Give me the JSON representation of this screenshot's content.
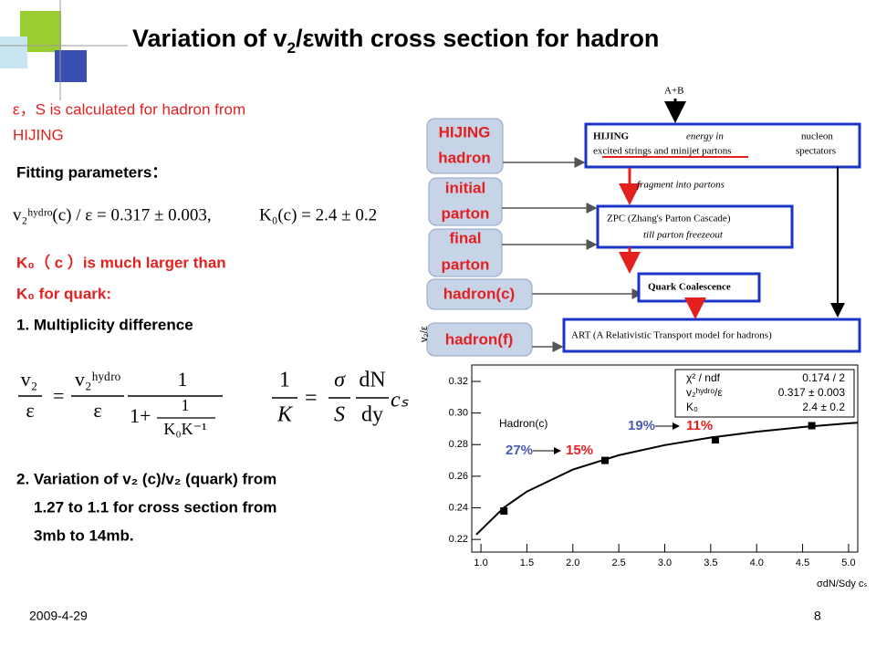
{
  "title": {
    "pre": "Variation of  v",
    "sub": "2",
    "post": "/εwith cross section for hadron"
  },
  "note": [
    "ε，S is calculated for hadron from",
    "HIJING"
  ],
  "fit_label": "Fitting parameters：",
  "fit_formula": [
    "v₂ʰʸᵈʳᵒ(c) / ε = 0.317 ± 0.003,",
    "K₀(c) = 2.4 ± 0.2"
  ],
  "k_lines": [
    "K₀（ c ）is much larger than",
    "K₀ for quark:"
  ],
  "item1": "1.  Multiplicity difference",
  "eq1": {
    "lhs_num": "v₂",
    "lhs_den": "ε",
    "eq": "=",
    "rhs_num": "v₂ʰʸᵈʳᵒ",
    "rhs_den": "ε",
    "one": "1",
    "den": "1+",
    "inner_num": "1",
    "inner_den": "K₀K⁻¹"
  },
  "eq2": {
    "one": "1",
    "k": "K",
    "eq": "=",
    "sigma": "σ",
    "s": "S",
    "dn": "dN",
    "dy": "dy",
    "cs": "cₛ"
  },
  "item2": [
    "2. Variation of v₂ (c)/v₂ (quark) from",
    "1.27 to 1.1 for cross section from",
    "3mb to 14mb."
  ],
  "labels": [
    "HIJING",
    "hadron",
    "initial",
    "parton",
    "final",
    "parton",
    "hadron(c)",
    "hadron(f)"
  ],
  "flow": {
    "ab": "A+B",
    "hijing": "HIJING",
    "energy": "energy in",
    "nucleon": "nucleon",
    "strings": "excited strings and minijet partons",
    "spectators": "spectators",
    "fragment": "fragment into partons",
    "zpc": "ZPC (Zhang's Parton Cascade)",
    "freeze": "till parton freezeout",
    "qc": "Quark Coalescence",
    "art": "ART (A Relativistic Transport model for hadrons)"
  },
  "chart_data": {
    "type": "scatter",
    "x_label": "σdN/Sdy cₛ",
    "y_label": "v₂/ε",
    "series_label": "Hadron(c)",
    "stats": [
      [
        "χ² / ndf",
        "0.174 / 2"
      ],
      [
        "v₂ʰʸᵈʳᵒ/ε",
        "0.317 ± 0.003"
      ],
      [
        "K₀",
        "2.4 ± 0.2"
      ]
    ],
    "x": [
      1.25,
      2.35,
      3.55,
      4.6
    ],
    "values": [
      0.238,
      0.27,
      0.283,
      0.292
    ],
    "color": "#000000",
    "fit": {
      "x": [
        0.95,
        1.25,
        1.5,
        2,
        2.5,
        3,
        3.5,
        4,
        4.5,
        5,
        5.1
      ],
      "values": [
        0.2231,
        0.2402,
        0.2503,
        0.2642,
        0.2733,
        0.2797,
        0.2845,
        0.2882,
        0.2911,
        0.2935,
        0.2939
      ],
      "color": "#000000"
    },
    "xlim": [
      0.9,
      5.1
    ],
    "ylim": [
      0.212,
      0.3304
    ],
    "xticks": [
      {
        "value": 1,
        "label": "1.0"
      },
      1.5,
      {
        "value": 2,
        "label": "2.0"
      },
      2.5,
      {
        "value": 3,
        "label": "3.0"
      },
      3.5,
      {
        "value": 4,
        "label": "4.0"
      },
      4.5,
      {
        "value": 5,
        "label": "5.0"
      }
    ],
    "yticks": [
      0.22,
      0.24,
      0.26,
      0.28,
      {
        "value": 0.3,
        "label": "0.30"
      },
      0.32
    ],
    "annotations": [
      {
        "from": "27%",
        "to": "15%"
      },
      {
        "from": "19%",
        "to": "11%"
      }
    ]
  },
  "footer": {
    "date": "2009-4-29",
    "page": "8"
  }
}
